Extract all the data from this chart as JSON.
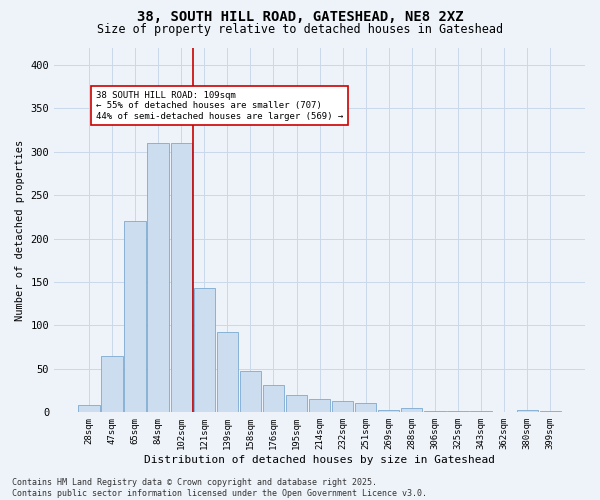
{
  "title_line1": "38, SOUTH HILL ROAD, GATESHEAD, NE8 2XZ",
  "title_line2": "Size of property relative to detached houses in Gateshead",
  "xlabel": "Distribution of detached houses by size in Gateshead",
  "ylabel": "Number of detached properties",
  "categories": [
    "28sqm",
    "47sqm",
    "65sqm",
    "84sqm",
    "102sqm",
    "121sqm",
    "139sqm",
    "158sqm",
    "176sqm",
    "195sqm",
    "214sqm",
    "232sqm",
    "251sqm",
    "269sqm",
    "288sqm",
    "306sqm",
    "325sqm",
    "343sqm",
    "362sqm",
    "380sqm",
    "399sqm"
  ],
  "bar_heights": [
    8,
    65,
    220,
    310,
    310,
    143,
    93,
    48,
    32,
    20,
    15,
    13,
    11,
    3,
    5,
    1,
    2,
    1,
    0,
    3,
    2
  ],
  "bar_color": "#ccddf0",
  "bar_edge_color": "#7aaad0",
  "reference_line_color": "#cc0000",
  "annotation_text": "38 SOUTH HILL ROAD: 109sqm\n← 55% of detached houses are smaller (707)\n44% of semi-detached houses are larger (569) →",
  "annotation_box_color": "#ffffff",
  "annotation_box_edge": "#cc0000",
  "ylim": [
    0,
    420
  ],
  "yticks": [
    0,
    50,
    100,
    150,
    200,
    250,
    300,
    350,
    400
  ],
  "grid_color": "#c8d8ea",
  "footer_text": "Contains HM Land Registry data © Crown copyright and database right 2025.\nContains public sector information licensed under the Open Government Licence v3.0.",
  "bg_color": "#eef3fa"
}
